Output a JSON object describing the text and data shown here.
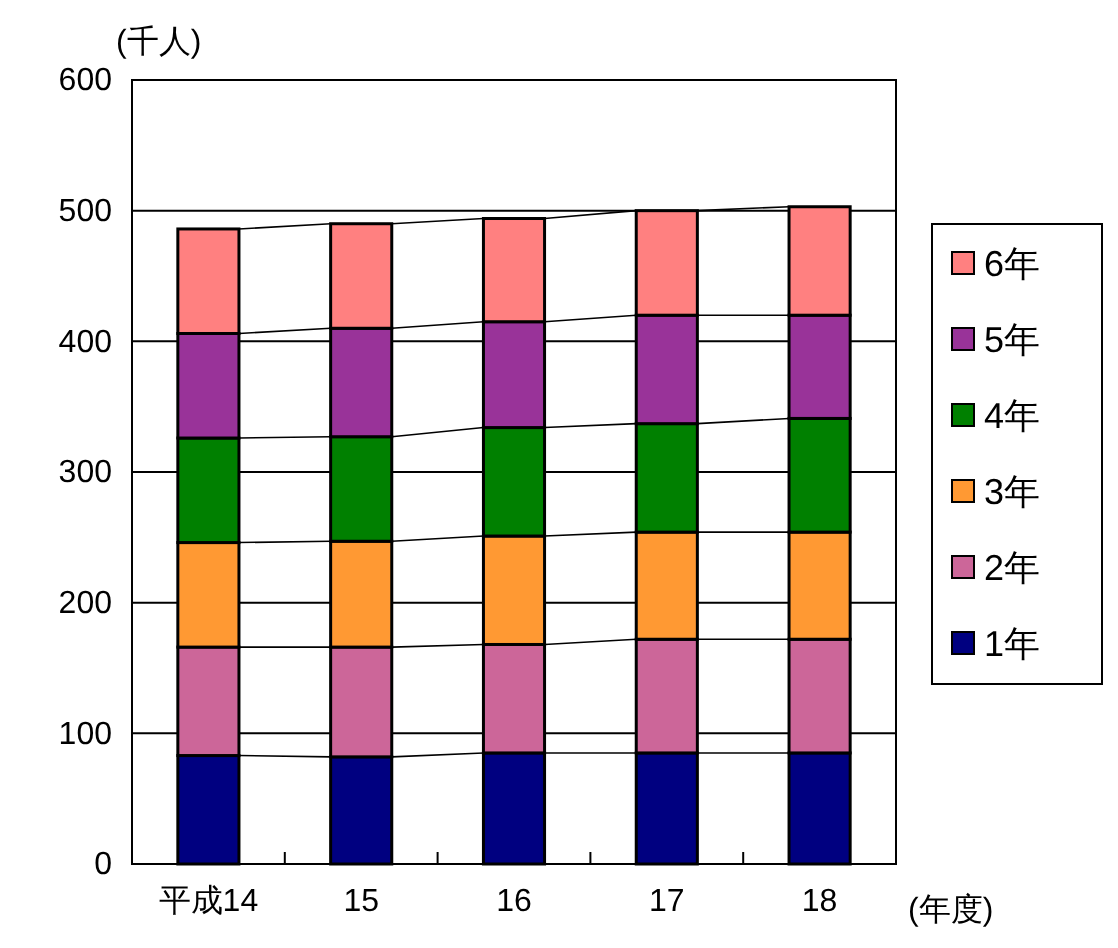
{
  "chart_data": {
    "type": "bar",
    "stacked": true,
    "ylabel": "(千人)",
    "xlabel": "(年度)",
    "categories": [
      "平成14",
      "15",
      "16",
      "17",
      "18"
    ],
    "ylim": [
      0,
      600
    ],
    "yticks": [
      0,
      100,
      200,
      300,
      400,
      500,
      600
    ],
    "grid": "y",
    "legend": "right",
    "series": [
      {
        "name": "1年",
        "color": "#000080",
        "values": [
          83,
          82,
          85,
          85,
          85
        ]
      },
      {
        "name": "2年",
        "color": "#cc6699",
        "values": [
          83,
          84,
          83,
          87,
          87
        ]
      },
      {
        "name": "3年",
        "color": "#ff9933",
        "values": [
          80,
          81,
          83,
          82,
          82
        ]
      },
      {
        "name": "4年",
        "color": "#008000",
        "values": [
          80,
          80,
          83,
          83,
          87
        ]
      },
      {
        "name": "5年",
        "color": "#993399",
        "values": [
          80,
          83,
          81,
          83,
          79
        ]
      },
      {
        "name": "6年",
        "color": "#ff8080",
        "values": [
          80,
          80,
          79,
          80,
          83
        ]
      }
    ]
  }
}
